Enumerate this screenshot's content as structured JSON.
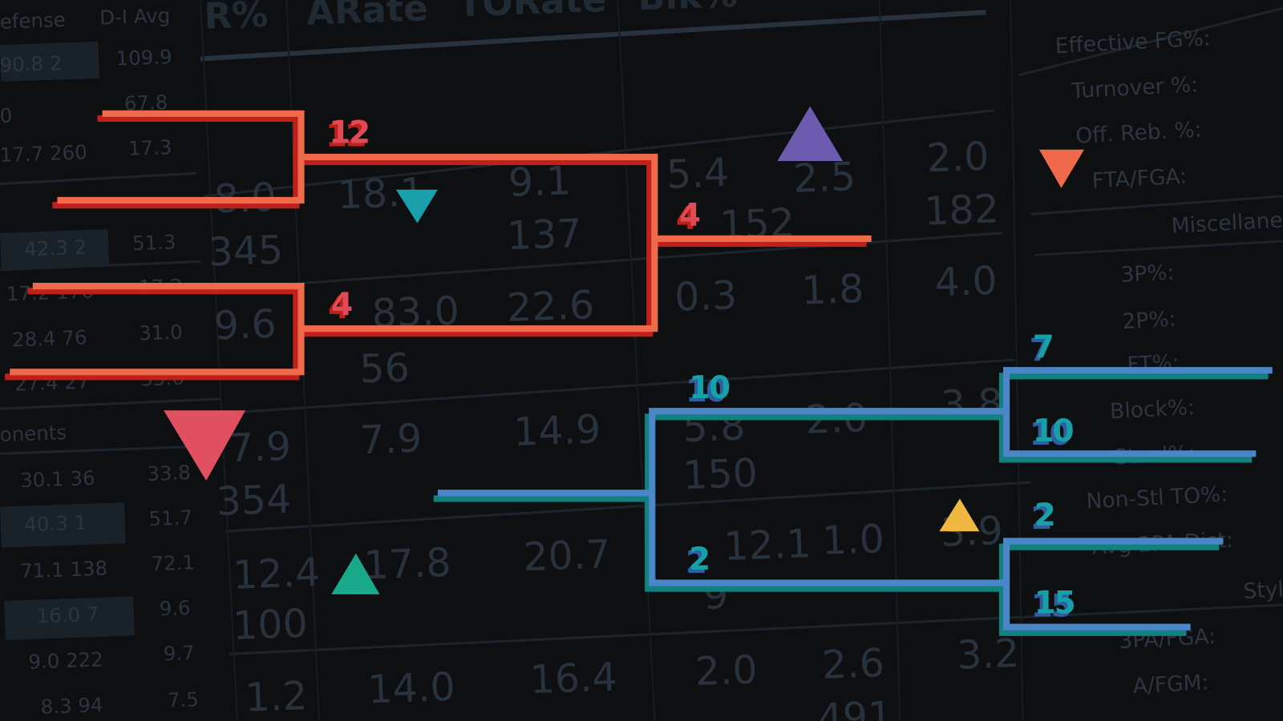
{
  "colors": {
    "background": "#0d0f11",
    "bracket_red_top": "#ee6a4b",
    "bracket_red_shadow": "#c0201a",
    "bracket_blue_top": "#4a86c8",
    "bracket_blue_shadow": "#12807f",
    "seed_red": "#e04a55",
    "seed_teal": "#16a0a8",
    "triangle_purple": "#6d5bb0",
    "triangle_orange": "#ee6a4b",
    "triangle_teal": "#1aa0aa",
    "triangle_red": "#e05060",
    "triangle_green": "#18a88a",
    "triangle_yellow": "#f0b840"
  },
  "background_table": {
    "headers": [
      "efense",
      "D-I Avg",
      "R%",
      "ARate",
      "TORate",
      "Blk%"
    ],
    "cells": [
      "90.8 2",
      "109.9",
      "0",
      "67.8",
      "17.7 260",
      "17.3",
      "8.0",
      "18.1",
      "9.1",
      "5.4",
      "2.5",
      "2.0",
      "345",
      "137",
      "182",
      "152",
      "42.3 2",
      "51.3",
      "17.2 176",
      "17.2",
      "9.6",
      "83.0",
      "22.6",
      "0.3",
      "1.8",
      "4.0",
      "28.4 76",
      "31.0",
      "27.4 27",
      "35.6",
      "56",
      "onents",
      "7.9",
      "7.9",
      "14.9",
      "5.8",
      "2.0",
      "3.8",
      "30.1 36",
      "33.8",
      "354",
      "150",
      "40.3 1",
      "51.7",
      "12.4",
      "17.8",
      "20.7",
      "12.1",
      "1.0",
      "3.9",
      "71.1 138",
      "72.1",
      "100",
      "9",
      "16.0 7",
      "9.6",
      "9.0 222",
      "9.7",
      "1.2",
      "14.0",
      "16.4",
      "2.0",
      "2.6",
      "3.2",
      "8.3 94",
      "7.5",
      "491"
    ]
  },
  "background_panel": {
    "labels": [
      "Effective FG%:",
      "Turnover %:",
      "Off. Reb. %:",
      "FTA/FGA:",
      "Miscellane",
      "3P%:",
      "2P%:",
      "FT%:",
      "Block%:",
      "Steal%:",
      "Non-Stl TO%:",
      "Avg 2PA Dist:",
      "Styl",
      "3PA/FGA:",
      "A/FGM:"
    ]
  },
  "bracket": {
    "red_seeds": [
      "12",
      "4",
      "4"
    ],
    "blue_seeds": [
      "10",
      "2",
      "7",
      "10",
      "2",
      "15"
    ]
  },
  "triangles": [
    {
      "color": "purple",
      "direction": "up"
    },
    {
      "color": "orange",
      "direction": "down"
    },
    {
      "color": "teal",
      "direction": "down"
    },
    {
      "color": "red",
      "direction": "down"
    },
    {
      "color": "green",
      "direction": "up"
    },
    {
      "color": "yellow",
      "direction": "up"
    }
  ]
}
